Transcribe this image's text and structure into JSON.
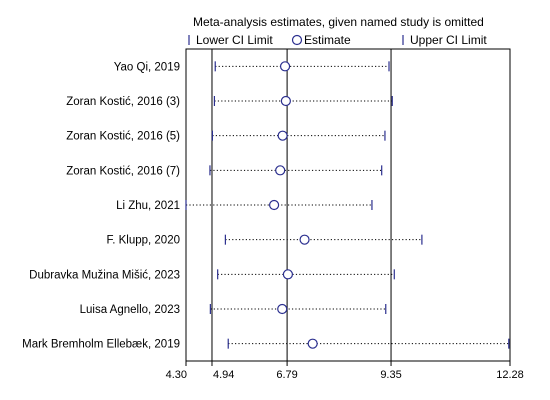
{
  "chart_data": {
    "type": "forest",
    "title": "Meta-analysis estimates, given named study is omitted",
    "legend": {
      "lower": "Lower CI Limit",
      "estimate": "Estimate",
      "upper": "Upper CI Limit",
      "position": "top"
    },
    "xlim": [
      4.3,
      12.28
    ],
    "x_ticks": [
      "4.30",
      "4.94",
      "6.79",
      "9.35",
      "12.28"
    ],
    "reference_lines": [
      4.94,
      6.79,
      9.35
    ],
    "grid": false,
    "colors": {
      "marker": "#2b2f8f",
      "line": "#000000"
    },
    "studies": [
      {
        "name": "Yao Qi, 2019",
        "lower": 5.02,
        "estimate": 6.74,
        "upper": 9.3
      },
      {
        "name": "Zoran Kostić, 2016 (3)",
        "lower": 5.0,
        "estimate": 6.76,
        "upper": 9.38
      },
      {
        "name": "Zoran Kostić, 2016 (5)",
        "lower": 4.95,
        "estimate": 6.68,
        "upper": 9.2
      },
      {
        "name": "Zoran Kostić, 2016 (7)",
        "lower": 4.89,
        "estimate": 6.62,
        "upper": 9.12
      },
      {
        "name": "Li Zhu, 2021",
        "lower": 4.3,
        "estimate": 6.47,
        "upper": 8.88
      },
      {
        "name": "F. Klupp, 2020",
        "lower": 5.27,
        "estimate": 7.22,
        "upper": 10.11
      },
      {
        "name": "Dubravka Mužina Mišić, 2023",
        "lower": 5.08,
        "estimate": 6.81,
        "upper": 9.43
      },
      {
        "name": "Luisa Agnello, 2023",
        "lower": 4.9,
        "estimate": 6.67,
        "upper": 9.22
      },
      {
        "name": "Mark Bremholm Ellebæk, 2019",
        "lower": 5.34,
        "estimate": 7.42,
        "upper": 12.25
      }
    ]
  }
}
